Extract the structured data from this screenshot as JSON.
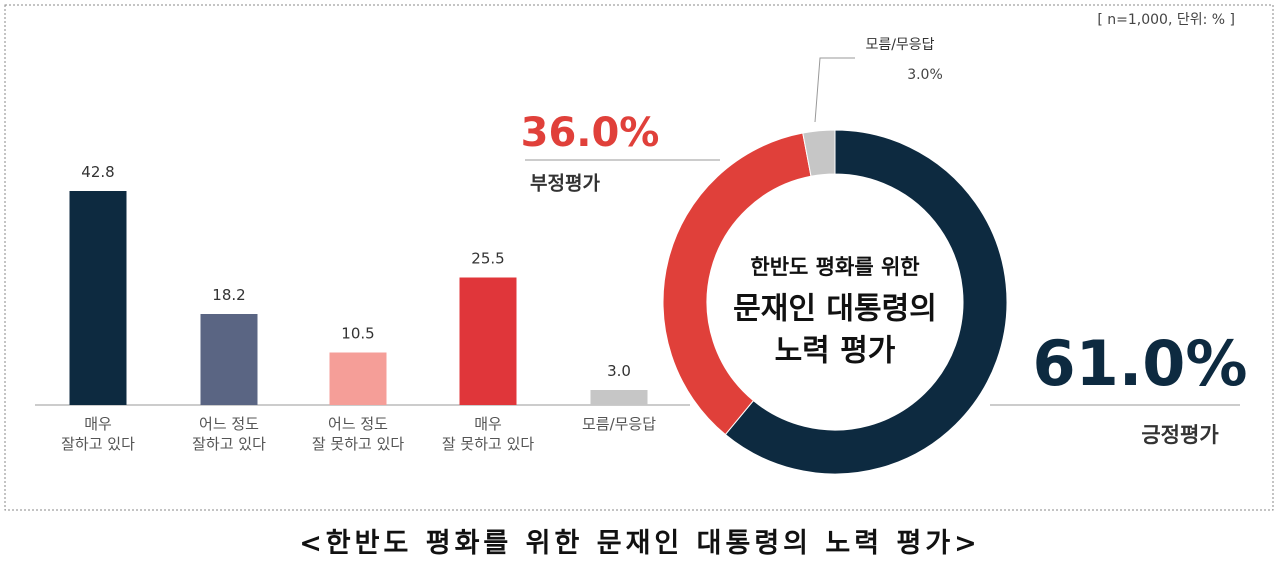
{
  "note": "[ n=1,000, 단위: % ]",
  "caption": "<한반도 평화를 위한 문재인 대통령의 노력 평가>",
  "chart_data": [
    {
      "type": "bar",
      "categories": [
        "매우\n잘하고 있다",
        "어느 정도\n잘하고 있다",
        "어느 정도\n잘 못하고 있다",
        "매우\n잘 못하고 있다",
        "모름/무응답"
      ],
      "values": [
        42.8,
        18.2,
        10.5,
        25.5,
        3.0
      ],
      "value_labels": [
        "42.8",
        "18.2",
        "10.5",
        "25.5",
        "3.0"
      ],
      "colors": [
        "#0d2a40",
        "#5a6583",
        "#f59e98",
        "#e0363a",
        "#c6c6c6"
      ]
    },
    {
      "type": "pie",
      "categories": [
        "긍정평가",
        "부정평가",
        "모름/무응답"
      ],
      "values": [
        61.0,
        36.0,
        3.0
      ],
      "value_labels": [
        "61.0%",
        "36.0%",
        "3.0%"
      ],
      "colors": [
        "#0d2a40",
        "#e0403a",
        "#c6c6c6"
      ],
      "center_text": [
        "한반도 평화를 위한",
        "문재인 대통령의",
        "노력 평가"
      ]
    }
  ]
}
